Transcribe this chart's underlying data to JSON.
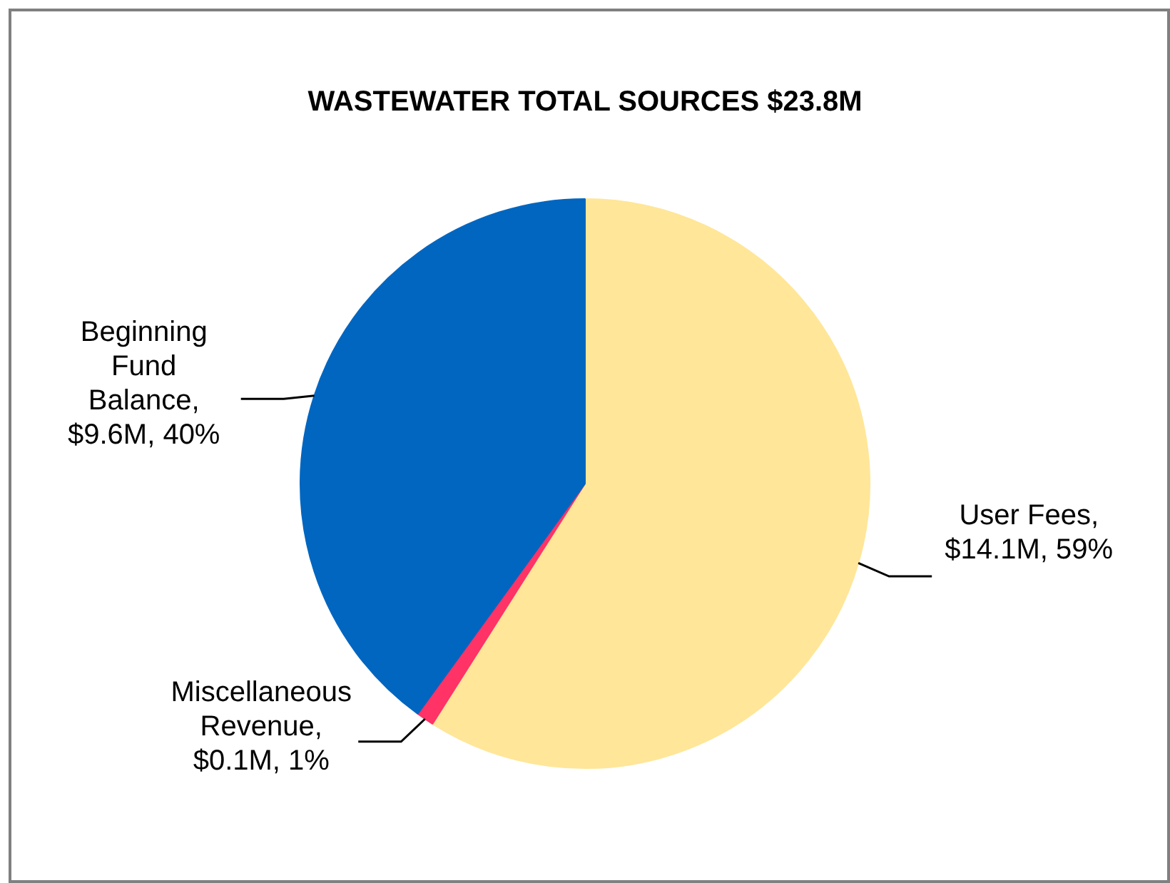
{
  "chart_data": {
    "type": "pie",
    "title": "WASTEWATER TOTAL SOURCES $23.8M",
    "categories": [
      "User Fees",
      "Miscellaneous Revenue",
      "Beginning Fund Balance"
    ],
    "values": [
      59,
      1,
      40
    ],
    "colors": [
      "#ffe699",
      "#ff3366",
      "#0066c0"
    ],
    "value_labels": [
      ", $14.1M, 59%",
      ", $0.1M, 1%",
      ", $9.6M, 40%"
    ],
    "legend": false
  }
}
